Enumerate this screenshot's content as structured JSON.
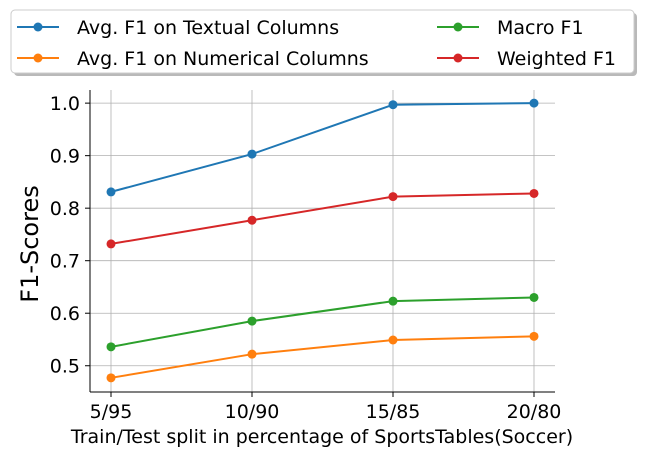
{
  "chart_data": {
    "type": "line",
    "categories": [
      "5/95",
      "10/90",
      "15/85",
      "20/80"
    ],
    "xlabel": "Train/Test split in percentage of SportsTables(Soccer)",
    "ylabel": "F1-Scores",
    "ylim": [
      0.45,
      1.025
    ],
    "yticks": [
      "0.5",
      "0.6",
      "0.7",
      "0.8",
      "0.9",
      "1.0"
    ],
    "grid": true,
    "legend_placement": "top, above plot, 2 columns",
    "series": [
      {
        "name": "Avg. F1 on Textual Columns",
        "color": "#1f77b4",
        "values": [
          0.831,
          0.903,
          0.997,
          1.0
        ]
      },
      {
        "name": "Avg. F1 on Numerical Columns",
        "color": "#ff7f0e",
        "values": [
          0.477,
          0.522,
          0.549,
          0.556
        ]
      },
      {
        "name": "Macro F1",
        "color": "#2ca02c",
        "values": [
          0.536,
          0.585,
          0.623,
          0.63
        ]
      },
      {
        "name": "Weighted F1",
        "color": "#d62728",
        "values": [
          0.732,
          0.777,
          0.822,
          0.828
        ]
      }
    ]
  }
}
